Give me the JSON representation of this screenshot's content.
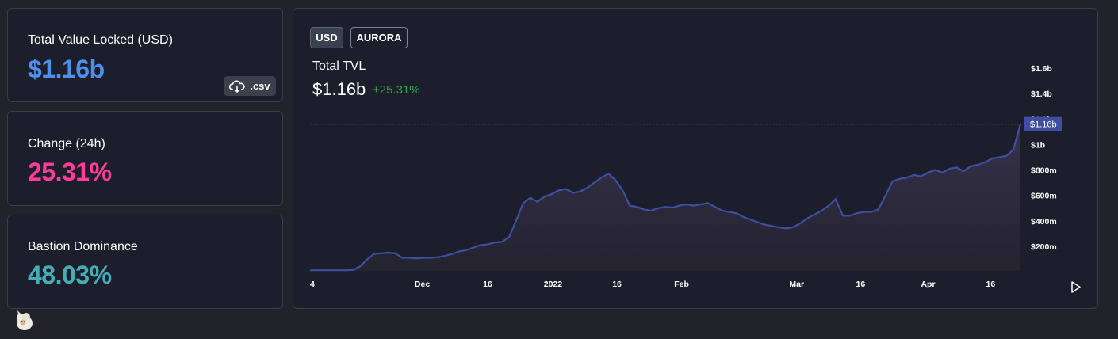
{
  "cards": {
    "tvl": {
      "label": "Total Value Locked (USD)",
      "value": "$1.16b",
      "color": "#4f8fea"
    },
    "change": {
      "label": "Change (24h)",
      "value": "25.31%",
      "color": "#fd3c99"
    },
    "dominance": {
      "label": "Bastion Dominance",
      "value": "48.03%",
      "color": "#46acb7"
    }
  },
  "csv_button": {
    "label": ".csv",
    "icon": "cloud-download-icon"
  },
  "toggles": [
    {
      "label": "USD",
      "active": true
    },
    {
      "label": "AURORA",
      "active": false
    }
  ],
  "header": {
    "title": "Total TVL",
    "value": "$1.16b",
    "change": "+25.31%",
    "change_color": "#29a847"
  },
  "play_icon": "play-icon",
  "mascot_icon": "llama-icon",
  "chart_data": {
    "type": "area",
    "title": "Total TVL",
    "x_labels": [
      "4",
      "Dec",
      "16",
      "2022",
      "16",
      "Feb",
      "Mar",
      "16",
      "Apr",
      "16"
    ],
    "y_ticks": [
      "$200m",
      "$400m",
      "$600m",
      "$800m",
      "$1b",
      "$1.2b",
      "$1.4b",
      "$1.6b"
    ],
    "y_tick_values": [
      200,
      400,
      600,
      800,
      1000,
      1200,
      1400,
      1600
    ],
    "ylim": [
      0,
      1700
    ],
    "current_value_label": "$1.16b",
    "current_value": 1160,
    "line_color": "#3e4fa1",
    "series": [
      {
        "values": [
          12,
          12,
          12,
          12,
          12,
          12,
          14,
          40,
          95,
          140,
          145,
          150,
          145,
          110,
          110,
          105,
          110,
          110,
          115,
          125,
          140,
          160,
          170,
          190,
          210,
          215,
          230,
          235,
          270,
          400,
          540,
          580,
          550,
          590,
          610,
          640,
          650,
          620,
          630,
          660,
          700,
          740,
          770,
          720,
          640,
          520,
          510,
          490,
          480,
          500,
          510,
          505,
          520,
          530,
          520,
          530,
          540,
          510,
          480,
          470,
          460,
          430,
          410,
          390,
          370,
          360,
          350,
          340,
          350,
          380,
          420,
          450,
          480,
          520,
          570,
          440,
          440,
          460,
          470,
          470,
          490,
          600,
          710,
          730,
          740,
          760,
          750,
          780,
          800,
          780,
          810,
          820,
          790,
          830,
          840,
          860,
          890,
          900,
          910,
          960,
          1160
        ]
      }
    ]
  }
}
